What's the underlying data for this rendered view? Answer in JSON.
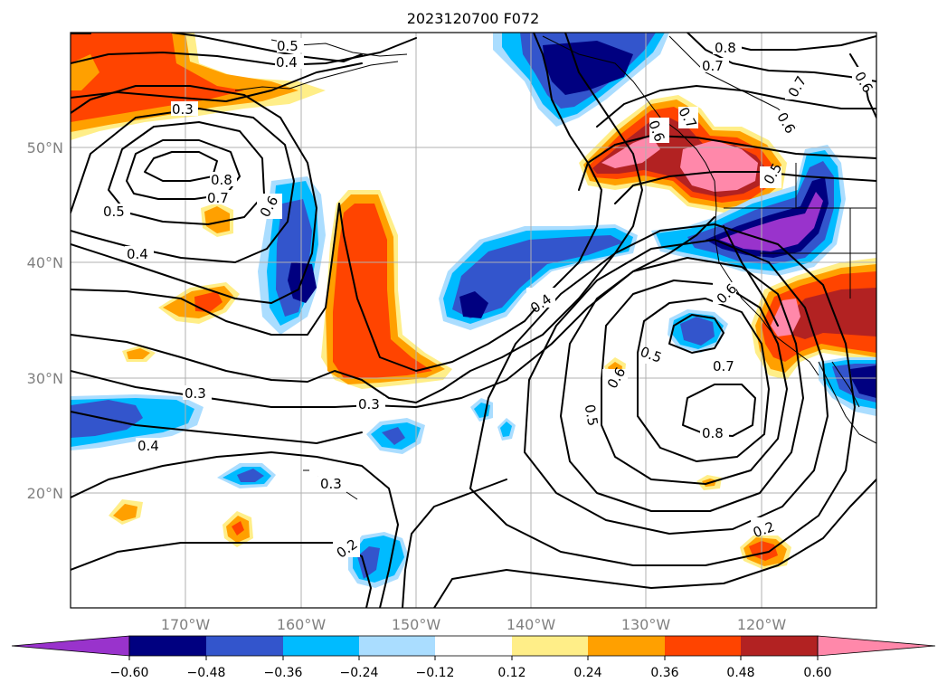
{
  "map": {
    "title": "2023120700 F072",
    "lon_labels": [
      "170°W",
      "160°W",
      "150°W",
      "140°W",
      "130°W",
      "120°W"
    ],
    "lat_labels": [
      "50°N",
      "40°N",
      "30°N",
      "20°N"
    ],
    "extent": {
      "lon_min": -180,
      "lon_max": -110,
      "lat_min": 10,
      "lat_max": 60
    },
    "gridlines": true,
    "contour_labels": [
      "0.5",
      "0.4",
      "0.3",
      "0.8",
      "0.7",
      "0.6",
      "0.5",
      "0.4",
      "0.3",
      "0.4",
      "0.3",
      "0.4",
      "0.5",
      "0.6",
      "0.5",
      "0.7",
      "0.8",
      "0.6",
      "0.8",
      "0.7",
      "0.7",
      "0.6",
      "0.6",
      "0.5",
      "0.3",
      "0.2",
      "0.2",
      "0.6",
      "0.7"
    ]
  },
  "colorbar": {
    "ticks": [
      "−0.60",
      "−0.48",
      "−0.36",
      "−0.24",
      "−0.12",
      "0.12",
      "0.24",
      "0.36",
      "0.48",
      "0.60"
    ],
    "colors": {
      "lt_m060": "#9933cc",
      "m060_m048": "#000080",
      "m048_m036": "#3355cc",
      "m036_m024": "#00bbff",
      "m024_m012": "#aaddff",
      "m012_012": "#ffffff",
      "012_024": "#ffee88",
      "024_036": "#ffa000",
      "036_048": "#ff4400",
      "048_060": "#b22222",
      "gt_060": "#ff88aa"
    }
  }
}
